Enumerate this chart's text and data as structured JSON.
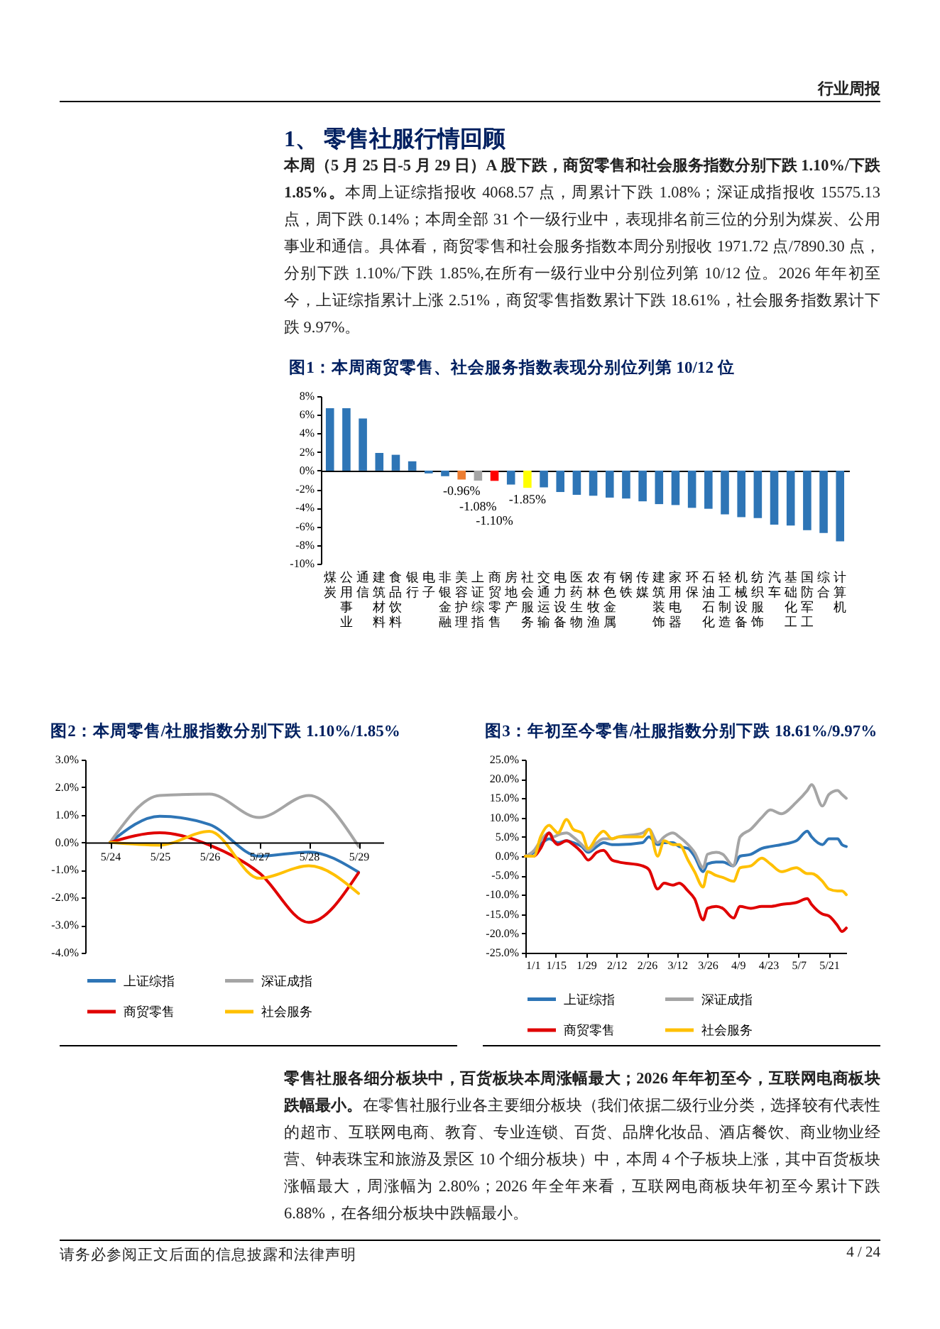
{
  "chart_data": [
    {
      "type": "bar",
      "title": "图1：本周商贸零售、社会服务指数表现分别位列第 10/12 位",
      "categories": [
        "煤炭",
        "公用事业",
        "通信",
        "建筑材料",
        "食品饮料",
        "银行",
        "电子",
        "非银金融",
        "美容护理",
        "上证综指",
        "商贸零售",
        "房地产",
        "社会服务",
        "交通运输",
        "电力设备",
        "医药生物",
        "农林牧渔",
        "有色金属",
        "钢铁",
        "传媒",
        "建筑装饰",
        "家用电器",
        "环保",
        "石油石化",
        "轻工制造",
        "机械设备",
        "纺织服饰",
        "汽车",
        "基础化工",
        "国防军工",
        "综合",
        "计算机"
      ],
      "values": [
        6.7,
        6.7,
        5.6,
        1.9,
        1.7,
        1.0,
        -0.3,
        -0.6,
        -0.96,
        -1.08,
        -1.1,
        -1.5,
        -1.85,
        -1.8,
        -2.3,
        -2.6,
        -2.7,
        -2.9,
        -3.0,
        -3.3,
        -3.6,
        -3.7,
        -4.0,
        -4.1,
        -4.7,
        -5.0,
        -5.1,
        -5.8,
        -5.9,
        -6.4,
        -6.7,
        -7.6
      ],
      "colors": [
        "#2e75b6",
        "#2e75b6",
        "#2e75b6",
        "#2e75b6",
        "#2e75b6",
        "#2e75b6",
        "#2e75b6",
        "#2e75b6",
        "#ed7d31",
        "#a5a5a5",
        "#ff0000",
        "#2e75b6",
        "#ffff00",
        "#2e75b6",
        "#2e75b6",
        "#2e75b6",
        "#2e75b6",
        "#2e75b6",
        "#2e75b6",
        "#2e75b6",
        "#2e75b6",
        "#2e75b6",
        "#2e75b6",
        "#2e75b6",
        "#2e75b6",
        "#2e75b6",
        "#2e75b6",
        "#2e75b6",
        "#2e75b6",
        "#2e75b6",
        "#2e75b6",
        "#2e75b6"
      ],
      "value_labels": [
        null,
        null,
        null,
        null,
        null,
        null,
        null,
        null,
        "-0.96%",
        "-1.08%",
        "-1.10%",
        null,
        "-1.85%",
        null,
        null,
        null,
        null,
        null,
        null,
        null,
        null,
        null,
        null,
        null,
        null,
        null,
        null,
        null,
        null,
        null,
        null,
        null
      ],
      "ylim": [
        -10,
        8
      ],
      "yticks": [
        {
          "value": -10,
          "label": "-10%"
        },
        {
          "value": -8,
          "label": "-8%"
        },
        {
          "value": -6,
          "label": "-6%"
        },
        {
          "value": -4,
          "label": "-4%"
        },
        {
          "value": -2,
          "label": "-2%"
        },
        {
          "value": 0,
          "label": "0%"
        },
        {
          "value": 2,
          "label": "2%"
        },
        {
          "value": 4,
          "label": "4%"
        },
        {
          "value": 6,
          "label": "6%"
        },
        {
          "value": 8,
          "label": "8%"
        }
      ],
      "annotations": [
        "行业周报",
        "1、 零售社服行情回顾",
        "本周（5 月 25 日-5 月 29 日）A 股下跌，商贸零售和社会服务指数分别下跌 1.10%/下跌 1.85%。",
        "本周上证综指报收 4068.57 点，周累计下跌 1.08%；深证成指报收 15575.13 点，周下跌 0.14%；本周全部 31 个一级行业中，表现排名前三位的分别为煤炭、公用事业和通信。具体看，商贸零售和社会服务指数本周分别报收 1971.72 点/7890.30 点，分别下跌 1.10%/下跌 1.85%,在所有一级行业中分别位列第 10/12 位。2026 年年初至今，上证综指累计上涨 2.51%，商贸零售指数累计下跌 18.61%，社会服务指数累计下跌 9.97%。"
      ]
    },
    {
      "type": "line",
      "title": "图2：本周零售/社服指数分别下跌 1.10%/1.85%",
      "categories": [
        "5/24",
        "5/25",
        "5/26",
        "5/27",
        "5/28",
        "5/29"
      ],
      "series": [
        {
          "name": "上证综指",
          "color": "#2e75b6",
          "values": [
            0,
            0.95,
            0.65,
            -0.5,
            -0.35,
            -1.08
          ]
        },
        {
          "name": "深证成指",
          "color": "#a5a5a5",
          "values": [
            0,
            1.7,
            1.75,
            0.9,
            1.7,
            -0.14
          ]
        },
        {
          "name": "商贸零售",
          "color": "#e00000",
          "values": [
            0,
            0.35,
            -0.1,
            -1.1,
            -2.9,
            -1.1
          ]
        },
        {
          "name": "社会服务",
          "color": "#ffc000",
          "values": [
            0,
            -0.1,
            0.4,
            -1.3,
            -0.85,
            -1.85
          ]
        }
      ],
      "ylim": [
        -4,
        3
      ],
      "yticks": [
        {
          "value": -4,
          "label": "-4.0%"
        },
        {
          "value": -3,
          "label": "-3.0%"
        },
        {
          "value": -2,
          "label": "-2.0%"
        },
        {
          "value": -1,
          "label": "-1.0%"
        },
        {
          "value": 0,
          "label": "0.0%"
        },
        {
          "value": 1,
          "label": "1.0%"
        },
        {
          "value": 2,
          "label": "2.0%"
        },
        {
          "value": 3,
          "label": "3.0%"
        }
      ],
      "legend": "bottom"
    },
    {
      "type": "line",
      "title": "图3：年初至今零售/社服指数分别下跌 18.61%/9.97%",
      "x": [
        "--01-01",
        "--01-05",
        "--01-08",
        "--01-12",
        "--01-14",
        "--01-16",
        "--01-20",
        "--01-23",
        "--01-27",
        "--01-30",
        "--02-03",
        "--02-06",
        "--02-10",
        "--02-13",
        "--02-24",
        "--02-27",
        "--03-03",
        "--03-06",
        "--03-10",
        "--03-13",
        "--03-17",
        "--03-20",
        "--03-24",
        "--03-26",
        "--03-30",
        "--04-02",
        "--04-07",
        "--04-10",
        "--04-15",
        "--04-20",
        "--04-24",
        "--04-29",
        "--05-06",
        "--05-11",
        "--05-13",
        "--05-18",
        "--05-21",
        "--05-25",
        "--05-27",
        "--05-29"
      ],
      "series": [
        {
          "name": "上证综指",
          "color": "#2e75b6",
          "values": [
            0,
            1,
            3,
            4.5,
            4,
            3.5,
            4,
            3.5,
            2.5,
            1,
            2.5,
            3.5,
            3,
            3,
            3.5,
            5,
            3,
            3.5,
            3.5,
            2.5,
            2,
            0,
            -4,
            -2,
            -1.5,
            -1.5,
            -2.5,
            0,
            0.5,
            2,
            2.5,
            3,
            4,
            6.5,
            5,
            3,
            4.5,
            4.5,
            3,
            2.51
          ]
        },
        {
          "name": "深证成指",
          "color": "#a5a5a5",
          "values": [
            0,
            1.5,
            4,
            6,
            5,
            5.5,
            6,
            5,
            3,
            1.5,
            3.5,
            4.5,
            4.5,
            5,
            6,
            7,
            3.5,
            5,
            6,
            5,
            3,
            1,
            -3,
            0.5,
            1,
            0.5,
            -2.5,
            5,
            7,
            10,
            12,
            11,
            14,
            17,
            18.5,
            13,
            16,
            17,
            16,
            15
          ]
        },
        {
          "name": "商贸零售",
          "color": "#e00000",
          "values": [
            0,
            0,
            2,
            6,
            4,
            3,
            4,
            3,
            1,
            -1,
            1,
            1.5,
            -1,
            -1.5,
            -2.5,
            -3.5,
            -8.5,
            -7,
            -7.5,
            -7,
            -9,
            -11,
            -16.5,
            -13.5,
            -13,
            -13.5,
            -16,
            -13,
            -13.5,
            -13,
            -13,
            -12.5,
            -12,
            -11,
            -12.5,
            -15,
            -15.5,
            -18,
            -19.5,
            -18.61
          ]
        },
        {
          "name": "社会服务",
          "color": "#ffc000",
          "values": [
            0,
            0,
            5,
            8,
            7,
            6,
            9.5,
            7,
            6,
            2,
            5,
            6.5,
            4.5,
            5,
            5,
            7,
            0,
            4,
            3,
            3,
            -1,
            -4,
            -8,
            -4,
            -5,
            -5.5,
            -6.5,
            -3,
            -2.5,
            -0.5,
            -2,
            -4,
            -3,
            -4.5,
            -4.5,
            -6.5,
            -8.5,
            -9,
            -9,
            -9.97
          ]
        }
      ],
      "xlim": [
        "--01-01",
        "--05-29"
      ],
      "xticks": [
        {
          "value": "--01-01",
          "label": "1/1"
        },
        {
          "value": "--01-15",
          "label": "1/15"
        },
        {
          "value": "--01-29",
          "label": "1/29"
        },
        {
          "value": "--02-12",
          "label": "2/12"
        },
        {
          "value": "--02-26",
          "label": "2/26"
        },
        {
          "value": "--03-12",
          "label": "3/12"
        },
        {
          "value": "--03-26",
          "label": "3/26"
        },
        {
          "value": "--04-09",
          "label": "4/9"
        },
        {
          "value": "--04-23",
          "label": "4/23"
        },
        {
          "value": "--05-07",
          "label": "5/7"
        },
        {
          "value": "--05-21",
          "label": "5/21"
        }
      ],
      "ylim": [
        -25,
        25
      ],
      "yticks": [
        {
          "value": -25,
          "label": "-25.0%"
        },
        {
          "value": -20,
          "label": "-20.0%"
        },
        {
          "value": -15,
          "label": "-15.0%"
        },
        {
          "value": -10,
          "label": "-10.0%"
        },
        {
          "value": -5,
          "label": "-5.0%"
        },
        {
          "value": 0,
          "label": "0.0%"
        },
        {
          "value": 5,
          "label": "5.0%"
        },
        {
          "value": 10,
          "label": "10.0%"
        },
        {
          "value": 15,
          "label": "15.0%"
        },
        {
          "value": 20,
          "label": "20.0%"
        },
        {
          "value": 25,
          "label": "25.0%"
        }
      ],
      "legend": "bottom",
      "annotations": [
        "零售社服各细分板块中，百货板块本周涨幅最大；2026 年年初至今，互联网电商板块跌幅最小。",
        "在零售社服行业各主要细分板块（我们依据二级行业分类，选择较有代表性的超市、互联网电商、教育、专业连锁、百货、品牌化妆品、酒店餐饮、商业物业经营、钟表珠宝和旅游及景区 10 个细分板块）中，本周 4 个子板块上涨，其中百货板块涨幅最大，周涨幅为 2.80%；2026 年全年来看，互联网电商板块年初至今累计下跌 6.88%，在各细分板块中跌幅最小。",
        "请务必参阅正文后面的信息披露和法律声明",
        "4 / 24"
      ]
    }
  ]
}
